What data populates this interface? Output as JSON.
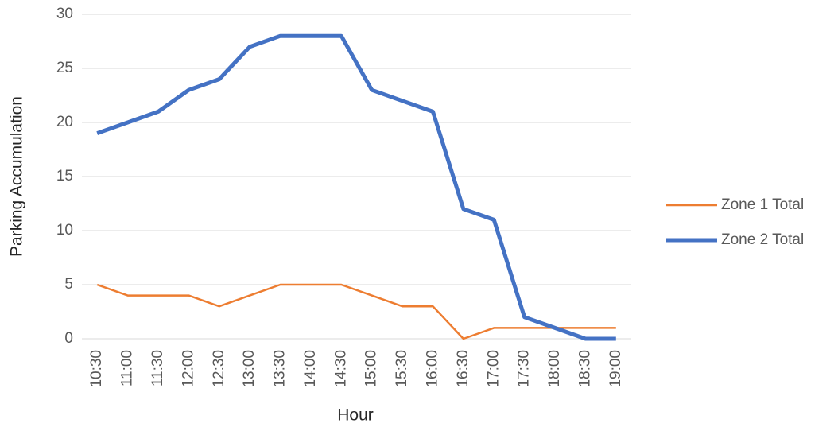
{
  "chart_data": {
    "type": "line",
    "x_label": "Hour",
    "y_label": "Parking Accumulation",
    "categories": [
      "10:30",
      "11:00",
      "11:30",
      "12:00",
      "12:30",
      "13:00",
      "13:30",
      "14:00",
      "14:30",
      "15:00",
      "15:30",
      "16:00",
      "16:30",
      "17:00",
      "17:30",
      "18:00",
      "18:30",
      "19:00"
    ],
    "series": [
      {
        "name": "Zone 1 Total",
        "color": "#ed7d31",
        "values": [
          5,
          4,
          4,
          4,
          3,
          4,
          5,
          5,
          5,
          4,
          3,
          3,
          0,
          1,
          1,
          1,
          1,
          1
        ]
      },
      {
        "name": "Zone 2 Total",
        "color": "#4472c4",
        "values": [
          19,
          20,
          21,
          23,
          24,
          27,
          28,
          28,
          28,
          23,
          22,
          21,
          12,
          11,
          2,
          1,
          0,
          0
        ]
      }
    ],
    "ylim": [
      0,
      30
    ],
    "yticks": [
      0,
      5,
      10,
      15,
      20,
      25,
      30
    ],
    "grid": true,
    "legend": "right"
  }
}
